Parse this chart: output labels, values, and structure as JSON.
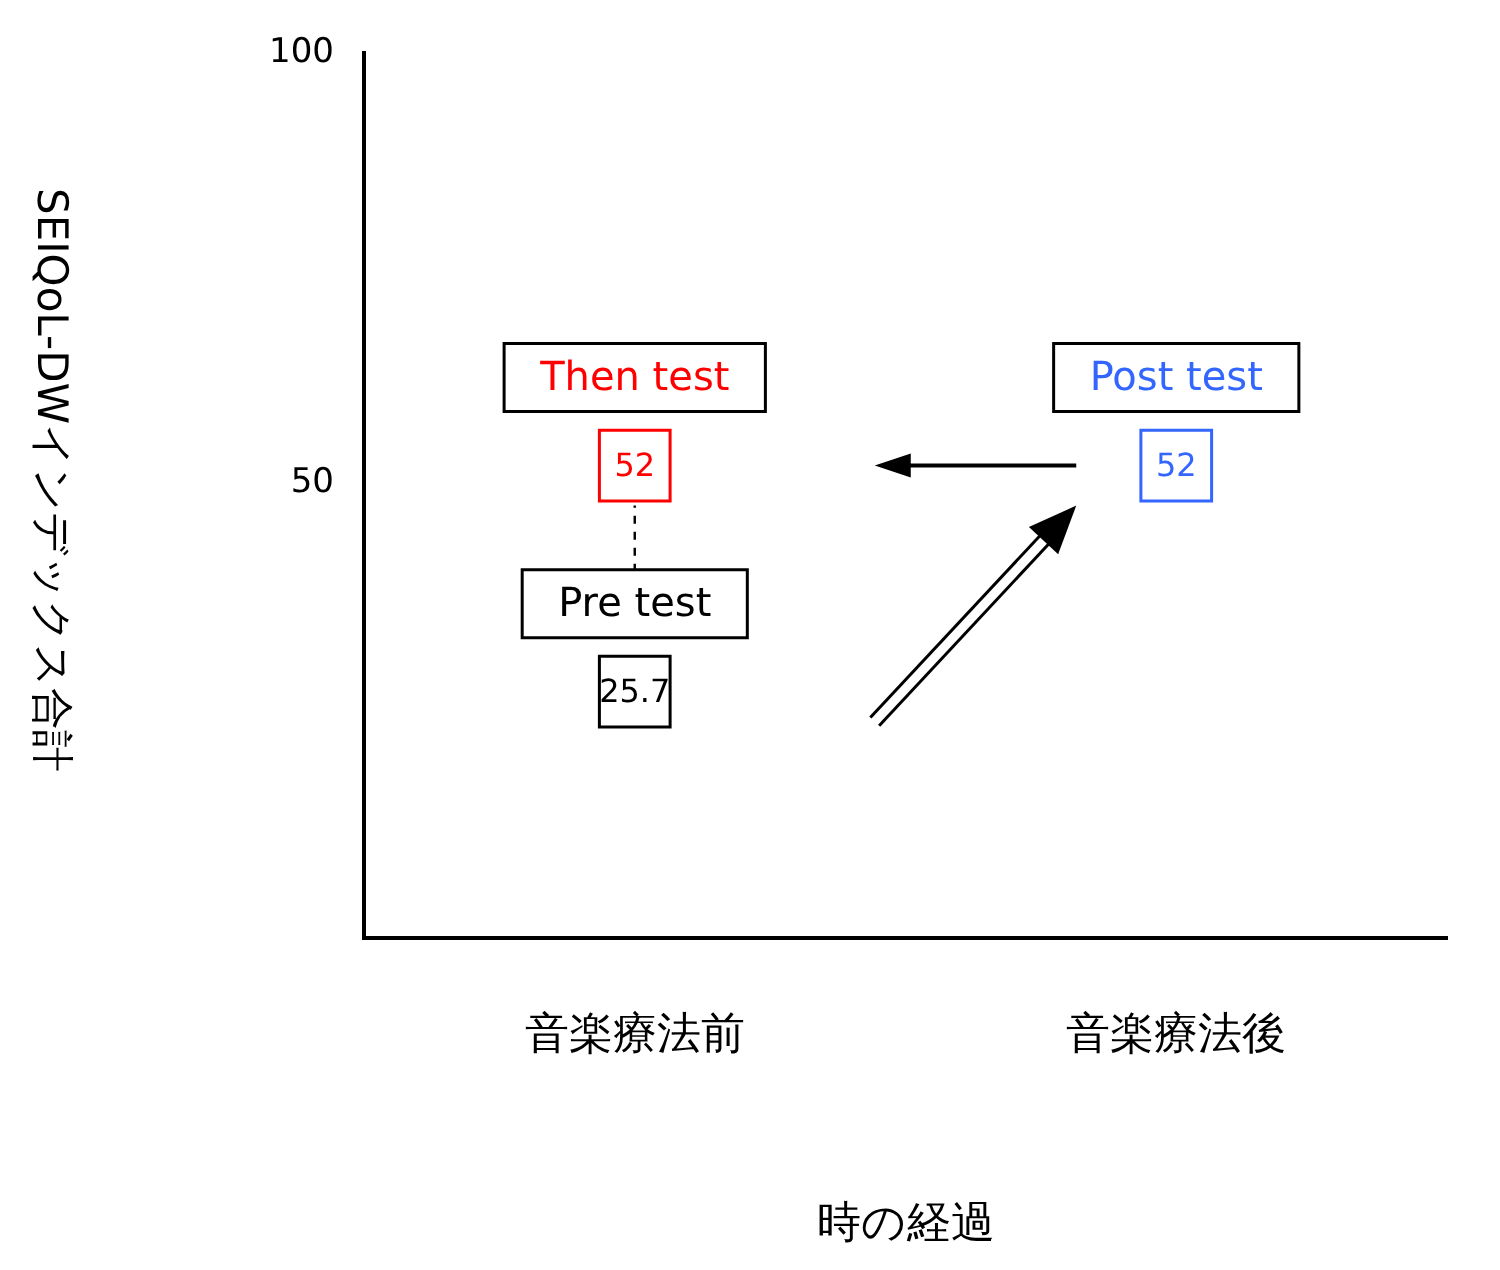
{
  "chart_data": {
    "type": "scatter",
    "xlabel": "時の経過",
    "ylabel": "SEIQoL-DWインデックス合計",
    "categories": [
      "音楽療法前",
      "音楽療法後"
    ],
    "series": [
      {
        "name": "Pre test",
        "color": "#000000",
        "x": [
          "音楽療法前"
        ],
        "values": [
          25.7
        ]
      },
      {
        "name": "Then test",
        "color": "#ff0000",
        "x": [
          "音楽療法前"
        ],
        "values": [
          52
        ]
      },
      {
        "name": "Post test",
        "color": "#3366ff",
        "x": [
          "音楽療法後"
        ],
        "values": [
          52
        ]
      }
    ],
    "ylim": [
      -3,
      100
    ],
    "yticks": [
      50,
      100
    ],
    "grid": false,
    "marker": "square",
    "data_labels": true
  }
}
